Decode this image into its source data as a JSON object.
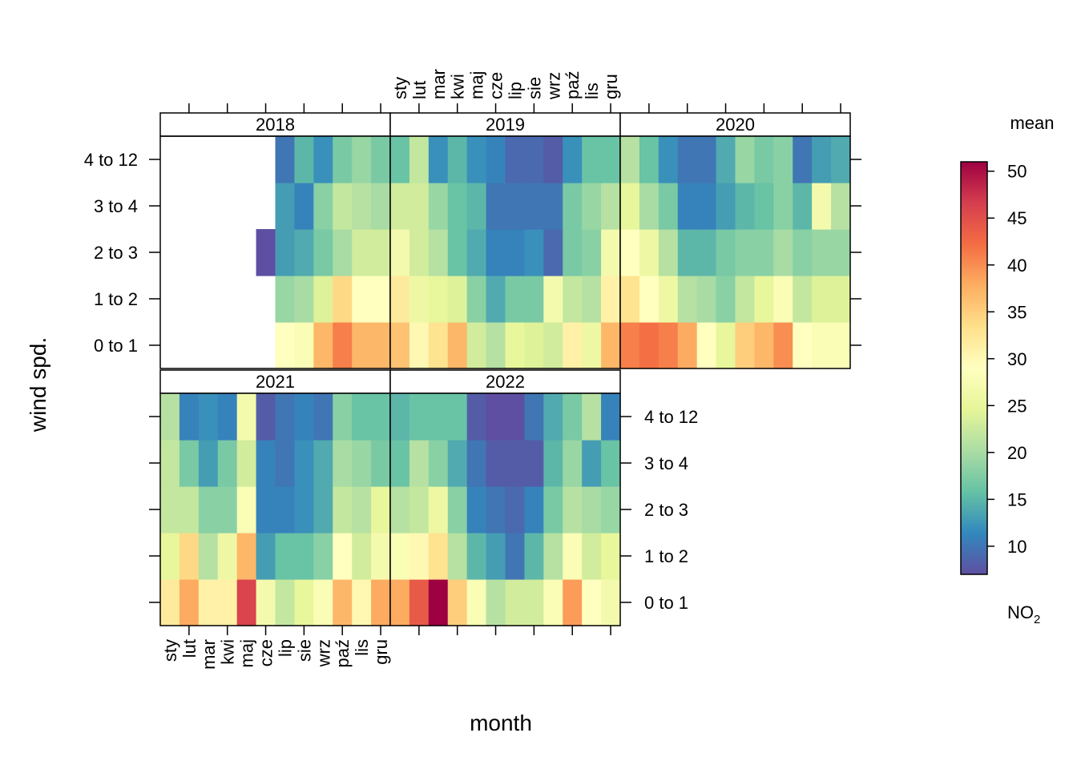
{
  "chart_data": {
    "type": "heatmap",
    "xlabel": "month",
    "ylabel": "wind spd.",
    "months": [
      "sty",
      "lut",
      "mar",
      "kwi",
      "maj",
      "cze",
      "lip",
      "sie",
      "wrz",
      "paź",
      "lis",
      "gru"
    ],
    "wind_bins": [
      "0 to 1",
      "1 to 2",
      "2 to 3",
      "3 to 4",
      "4 to 12"
    ],
    "legend": {
      "title": "mean",
      "subtitle_main": "NO",
      "subtitle_sub": "2",
      "ticks": [
        10,
        15,
        20,
        25,
        30,
        35,
        40,
        45,
        50
      ],
      "range": [
        7,
        51
      ]
    },
    "panels": [
      {
        "year": "2018",
        "values": [
          [
            null,
            null,
            null,
            null,
            null,
            null,
            29,
            28,
            37,
            41,
            37,
            37
          ],
          [
            null,
            null,
            null,
            null,
            null,
            null,
            19,
            20,
            24,
            34,
            29,
            29
          ],
          [
            null,
            null,
            null,
            null,
            null,
            7,
            13,
            14,
            17,
            20,
            23,
            23
          ],
          [
            null,
            null,
            null,
            null,
            null,
            null,
            13,
            11,
            18,
            22,
            21,
            20
          ],
          [
            null,
            null,
            null,
            null,
            null,
            null,
            10,
            15,
            12,
            17,
            19,
            17
          ]
        ]
      },
      {
        "year": "2019",
        "values": [
          [
            36,
            30,
            33,
            37,
            23,
            21,
            25,
            24,
            23,
            31,
            26,
            37
          ],
          [
            32,
            26,
            25,
            24,
            18,
            14,
            17,
            17,
            27,
            22,
            21,
            31
          ],
          [
            27,
            23,
            21,
            16,
            14,
            11,
            11,
            12,
            9,
            17,
            18,
            27
          ],
          [
            23,
            23,
            19,
            16,
            15,
            10,
            10,
            10,
            10,
            17,
            19,
            21
          ],
          [
            16,
            22,
            12,
            15,
            12,
            11,
            9,
            9,
            8,
            12,
            16,
            16
          ]
        ]
      },
      {
        "year": "2020",
        "values": [
          [
            41,
            42,
            41,
            38,
            29,
            25,
            35,
            37,
            40,
            29,
            28,
            28
          ],
          [
            33,
            29,
            26,
            21,
            20,
            18,
            22,
            25,
            28,
            22,
            24,
            24
          ],
          [
            29,
            26,
            21,
            15,
            15,
            17,
            18,
            18,
            20,
            18,
            19,
            19
          ],
          [
            25,
            20,
            17,
            11,
            11,
            13,
            15,
            16,
            18,
            15,
            27,
            21
          ],
          [
            21,
            16,
            12,
            10,
            10,
            14,
            19,
            17,
            18,
            10,
            13,
            14
          ]
        ]
      },
      {
        "year": "2021",
        "values": [
          [
            32,
            38,
            31,
            31,
            46,
            27,
            22,
            25,
            28,
            37,
            30,
            38
          ],
          [
            25,
            34,
            21,
            26,
            37,
            13,
            16,
            16,
            18,
            29,
            23,
            27
          ],
          [
            22,
            22,
            18,
            18,
            28,
            11,
            11,
            12,
            14,
            22,
            21,
            25
          ],
          [
            22,
            17,
            13,
            17,
            23,
            11,
            10,
            12,
            14,
            20,
            19,
            17
          ],
          [
            21,
            11,
            12,
            11,
            27,
            8,
            10,
            11,
            10,
            18,
            16,
            16
          ]
        ]
      },
      {
        "year": "2022",
        "values": [
          [
            38,
            44,
            51,
            35,
            28,
            21,
            23,
            23,
            28,
            39,
            29,
            27
          ],
          [
            28,
            30,
            33,
            21,
            15,
            13,
            10,
            15,
            21,
            28,
            23,
            25
          ],
          [
            21,
            22,
            26,
            18,
            11,
            10,
            9,
            11,
            17,
            21,
            20,
            19
          ],
          [
            16,
            21,
            18,
            14,
            10,
            8,
            8,
            8,
            15,
            19,
            13,
            16
          ],
          [
            15,
            16,
            16,
            16,
            8,
            7,
            7,
            10,
            14,
            17,
            21,
            11
          ]
        ]
      }
    ]
  }
}
